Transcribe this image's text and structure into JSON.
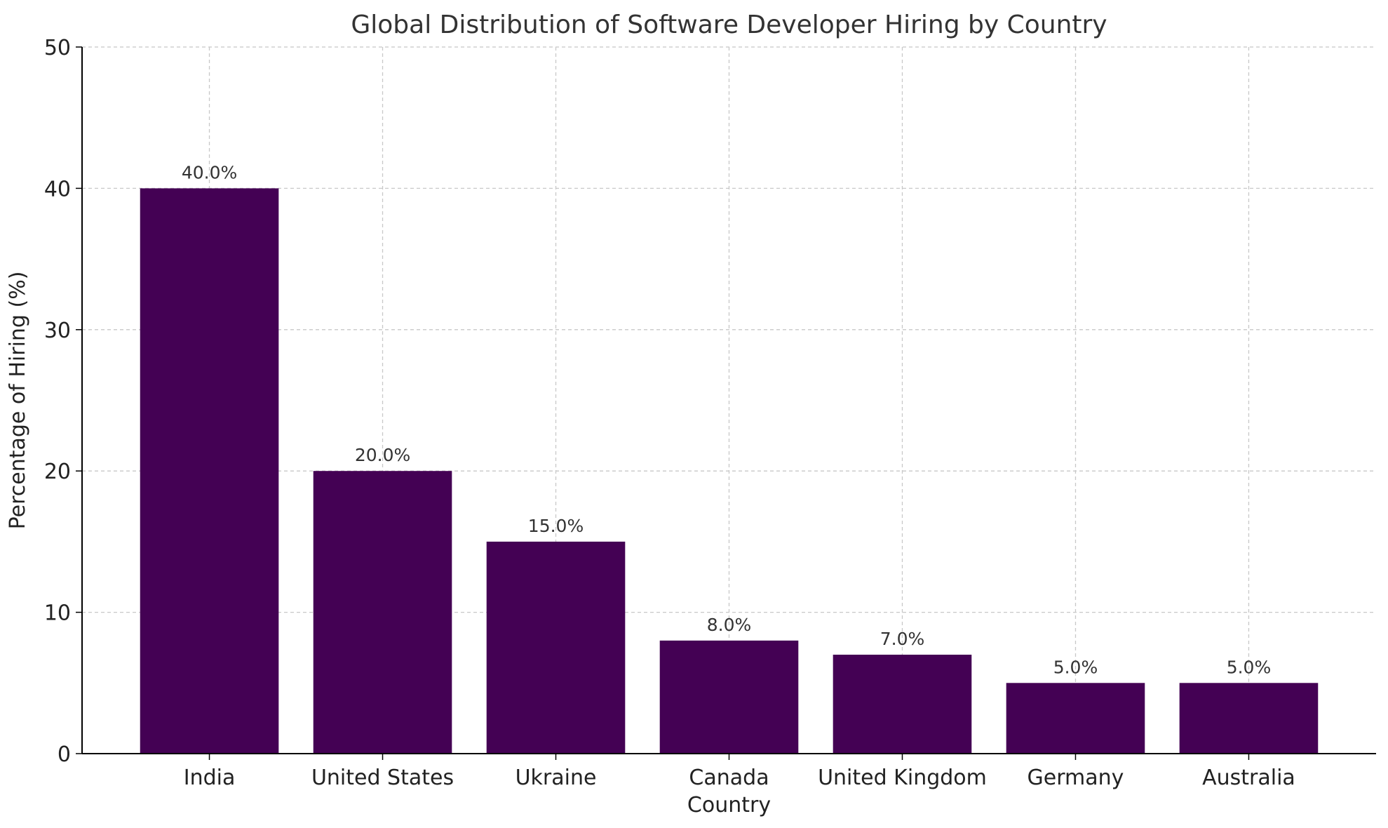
{
  "chart_data": {
    "type": "bar",
    "title": "Global Distribution of Software Developer Hiring by Country",
    "xlabel": "Country",
    "ylabel": "Percentage of Hiring (%)",
    "categories": [
      "India",
      "United States",
      "Ukraine",
      "Canada",
      "United Kingdom",
      "Germany",
      "Australia"
    ],
    "values": [
      40,
      20,
      15,
      8,
      7,
      5,
      5
    ],
    "data_labels": [
      "40.0%",
      "20.0%",
      "15.0%",
      "8.0%",
      "7.0%",
      "5.0%",
      "5.0%"
    ],
    "ylim": [
      0,
      50
    ],
    "yticks": [
      "0",
      "10",
      "20",
      "30",
      "40",
      "50"
    ],
    "grid": true,
    "bar_color": "#440154",
    "grid_color": "#c8c8c8",
    "axis_color": "#000000"
  }
}
